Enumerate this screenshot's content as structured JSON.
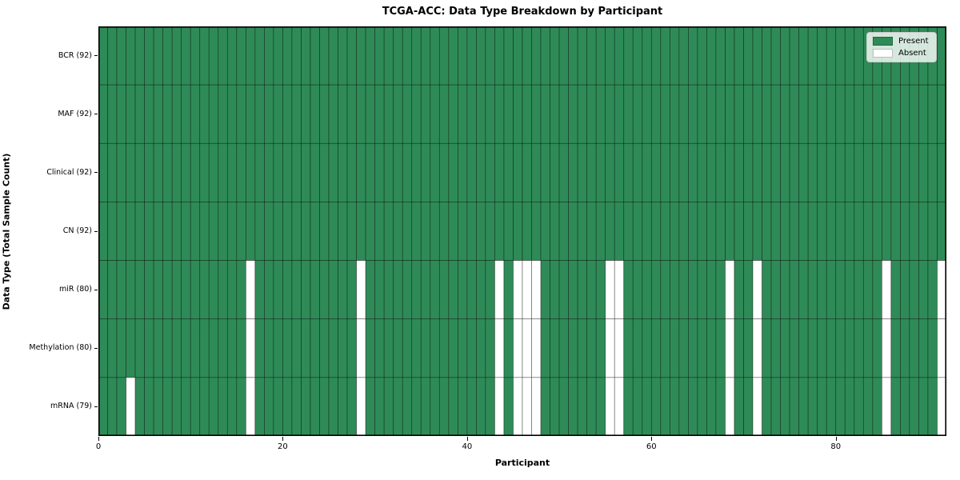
{
  "chart_data": {
    "type": "heatmap",
    "title": "TCGA-ACC: Data Type Breakdown by Participant",
    "xlabel": "Participant",
    "ylabel": "Data Type (Total Sample Count)",
    "n_participants": 92,
    "x_range": [
      0,
      92
    ],
    "x_ticks": [
      0,
      20,
      40,
      60,
      80
    ],
    "grid": "cell-borders",
    "legend_position": "upper-right",
    "rows": [
      {
        "label": "BCR (92)",
        "data_type": "BCR",
        "present_count": 92,
        "absent_participants": []
      },
      {
        "label": "MAF (92)",
        "data_type": "MAF",
        "present_count": 92,
        "absent_participants": []
      },
      {
        "label": "Clinical (92)",
        "data_type": "Clinical",
        "present_count": 92,
        "absent_participants": []
      },
      {
        "label": "CN (92)",
        "data_type": "CN",
        "present_count": 92,
        "absent_participants": []
      },
      {
        "label": "miR (80)",
        "data_type": "miR",
        "present_count": 80,
        "absent_participants": [
          16,
          28,
          43,
          45,
          46,
          47,
          55,
          56,
          68,
          71,
          85,
          91
        ]
      },
      {
        "label": "Methylation (80)",
        "data_type": "Methylation",
        "present_count": 80,
        "absent_participants": [
          16,
          28,
          43,
          45,
          46,
          47,
          55,
          56,
          68,
          71,
          85,
          91
        ]
      },
      {
        "label": "mRNA (79)",
        "data_type": "mRNA",
        "present_count": 79,
        "absent_participants": [
          3,
          16,
          28,
          43,
          45,
          46,
          47,
          55,
          56,
          68,
          71,
          85,
          91
        ]
      }
    ],
    "legend": [
      {
        "label": "Present",
        "color": "#2e8b57"
      },
      {
        "label": "Absent",
        "color": "#ffffff"
      }
    ],
    "colors": {
      "present": "#2e8b57",
      "absent": "#ffffff",
      "cell_edge": "rgba(0,0,0,0.5)",
      "spine": "#000000"
    }
  }
}
